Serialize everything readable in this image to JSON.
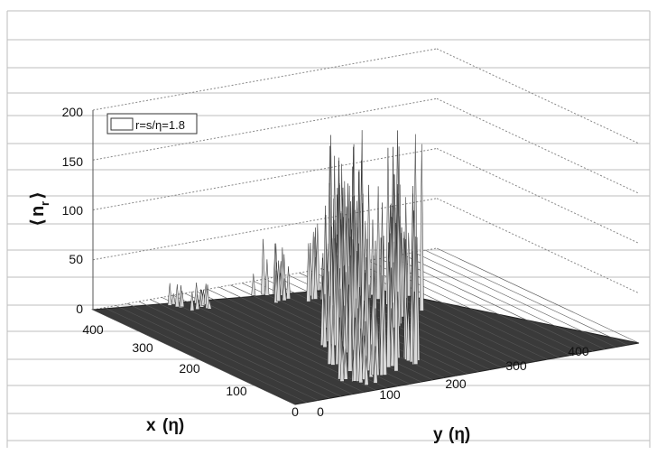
{
  "chart_data": {
    "type": "surface",
    "title": "",
    "zlabel_main": "n",
    "zlabel_sub": "r",
    "xlabel_main": "x",
    "xlabel_unit": "(η)",
    "ylabel_main": "y",
    "ylabel_unit": "(η)",
    "legend": "r=s/η=1.8",
    "legend_position": "top-left",
    "grid": true,
    "zlim": [
      0,
      200
    ],
    "xlim": [
      0,
      450
    ],
    "ylim": [
      0,
      450
    ],
    "z_ticks": [
      "0",
      "50",
      "100",
      "150",
      "200"
    ],
    "x_ticks": [
      "0",
      "100",
      "200",
      "300",
      "400"
    ],
    "y_ticks": [
      "0",
      "100",
      "200",
      "300",
      "400"
    ],
    "peaks": [
      {
        "x": 140,
        "y": 170,
        "z": 120
      },
      {
        "x": 180,
        "y": 160,
        "z": 140
      },
      {
        "x": 200,
        "y": 190,
        "z": 180
      },
      {
        "x": 240,
        "y": 200,
        "z": 200
      },
      {
        "x": 260,
        "y": 220,
        "z": 170
      },
      {
        "x": 280,
        "y": 230,
        "z": 160
      },
      {
        "x": 220,
        "y": 260,
        "z": 150
      },
      {
        "x": 250,
        "y": 290,
        "z": 190
      },
      {
        "x": 300,
        "y": 310,
        "z": 175
      },
      {
        "x": 330,
        "y": 280,
        "z": 180
      },
      {
        "x": 360,
        "y": 240,
        "z": 70
      },
      {
        "x": 380,
        "y": 200,
        "z": 60
      },
      {
        "x": 60,
        "y": 150,
        "z": 150
      },
      {
        "x": 80,
        "y": 190,
        "z": 130
      },
      {
        "x": 100,
        "y": 130,
        "z": 140
      },
      {
        "x": 40,
        "y": 110,
        "z": 70
      },
      {
        "x": 400,
        "y": 100,
        "z": 25
      }
    ]
  }
}
